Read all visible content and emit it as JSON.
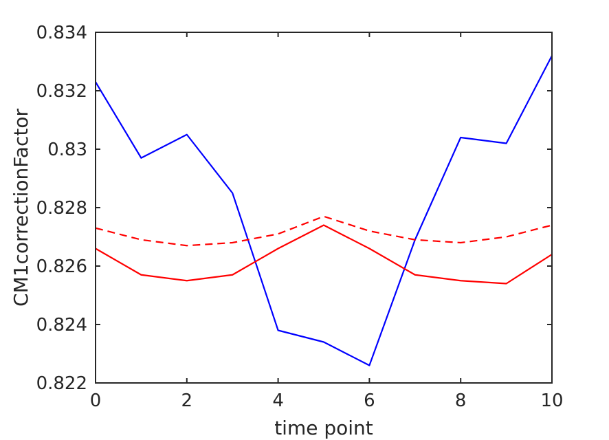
{
  "chart_data": {
    "type": "line",
    "title": "",
    "xlabel": "time point",
    "ylabel": "CM1correctionFactor",
    "xlim": [
      0,
      10
    ],
    "ylim": [
      0.822,
      0.834
    ],
    "x_ticks": [
      0,
      2,
      4,
      6,
      8,
      10
    ],
    "x_tick_labels": [
      "0",
      "2",
      "4",
      "6",
      "8",
      "10"
    ],
    "y_ticks": [
      0.822,
      0.824,
      0.826,
      0.828,
      0.83,
      0.832,
      0.834
    ],
    "y_tick_labels": [
      "0.822",
      "0.824",
      "0.826",
      "0.828",
      "0.83",
      "0.832",
      "0.834"
    ],
    "grid": false,
    "x": [
      0,
      1,
      2,
      3,
      4,
      5,
      6,
      7,
      8,
      9,
      10
    ],
    "series": [
      {
        "color": "#0000ff",
        "style": "solid",
        "values": [
          0.8323,
          0.8297,
          0.8305,
          0.8285,
          0.8238,
          0.8234,
          0.8226,
          0.8269,
          0.8304,
          0.8302,
          0.8332
        ]
      },
      {
        "color": "#ff0000",
        "style": "dashed",
        "values": [
          0.8273,
          0.8269,
          0.8267,
          0.8268,
          0.8271,
          0.8277,
          0.8272,
          0.8269,
          0.8268,
          0.827,
          0.8274
        ]
      },
      {
        "color": "#ff0000",
        "style": "solid",
        "values": [
          0.8266,
          0.8257,
          0.8255,
          0.8257,
          0.8266,
          0.8274,
          0.8266,
          0.8257,
          0.8255,
          0.8254,
          0.8264
        ]
      }
    ]
  }
}
